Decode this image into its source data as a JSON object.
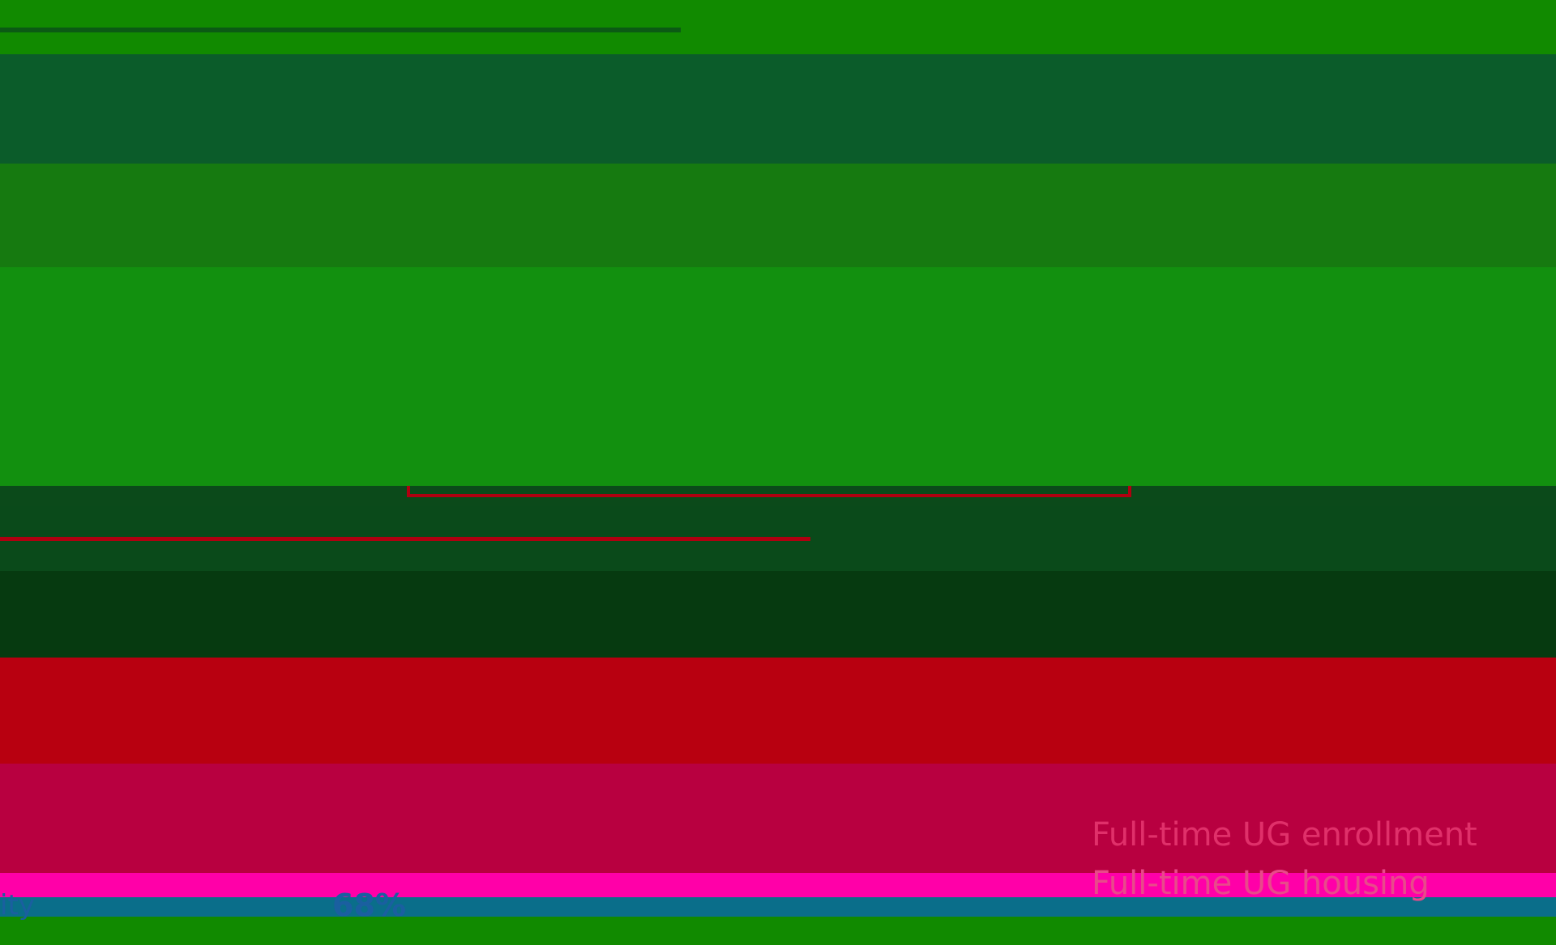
{
  "stats": {
    "enrollment_label": "Full-time UG enrollment",
    "housing_label": "Full-time UG housing",
    "percent": "68%",
    "partial_label": "ity"
  }
}
